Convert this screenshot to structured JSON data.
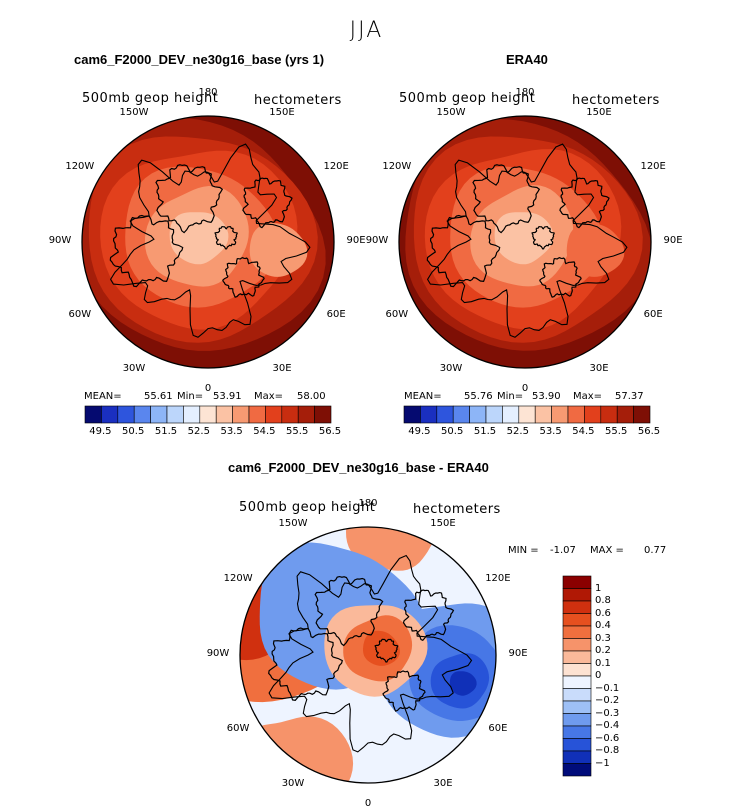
{
  "super_title": "JJA",
  "chart_data": [
    {
      "type": "heatmap",
      "title": "cam6_F2000_DEV_ne30g16_base (yrs 1)",
      "projection": "north polar stereographic",
      "field_label": "500mb geop height",
      "units": "hectometers",
      "lon_labels": [
        "180",
        "150E",
        "120E",
        "90E",
        "60E",
        "30E",
        "0",
        "30W",
        "60W",
        "90W",
        "120W",
        "150W"
      ],
      "stats": {
        "mean_label": "MEAN=",
        "mean": "55.61",
        "min_label": "Min=",
        "min": "53.91",
        "max_label": "Max=",
        "max": "58.00"
      },
      "contour_levels": [
        49.5,
        50,
        50.5,
        51,
        51.5,
        52,
        52.5,
        53,
        53.5,
        54,
        54.5,
        55,
        55.5,
        56,
        56.5
      ],
      "colorbar_labels": [
        "49.5",
        "50.5",
        "51.5",
        "52.5",
        "53.5",
        "54.5",
        "55.5",
        "56.5"
      ],
      "colors": [
        "#050a70",
        "#1a2fc0",
        "#2e55dd",
        "#5a86ee",
        "#8db5f7",
        "#bcd6fb",
        "#e4efff",
        "#fde4d4",
        "#fbc2a4",
        "#f79a72",
        "#f06a42",
        "#e2401c",
        "#c82d10",
        "#a51e0a",
        "#7e0f05"
      ]
    },
    {
      "type": "heatmap",
      "title": "ERA40",
      "projection": "north polar stereographic",
      "field_label": "500mb geop height",
      "units": "hectometers",
      "lon_labels": [
        "180",
        "150E",
        "120E",
        "90E",
        "60E",
        "30E",
        "0",
        "30W",
        "60W",
        "90W",
        "120W",
        "150W"
      ],
      "stats": {
        "mean_label": "MEAN=",
        "mean": "55.76",
        "min_label": "Min=",
        "min": "53.90",
        "max_label": "Max=",
        "max": "57.37"
      },
      "contour_levels": [
        49.5,
        50,
        50.5,
        51,
        51.5,
        52,
        52.5,
        53,
        53.5,
        54,
        54.5,
        55,
        55.5,
        56,
        56.5
      ],
      "colorbar_labels": [
        "49.5",
        "50.5",
        "51.5",
        "52.5",
        "53.5",
        "54.5",
        "55.5",
        "56.5"
      ],
      "colors": [
        "#050a70",
        "#1a2fc0",
        "#2e55dd",
        "#5a86ee",
        "#8db5f7",
        "#bcd6fb",
        "#e4efff",
        "#fde4d4",
        "#fbc2a4",
        "#f79a72",
        "#f06a42",
        "#e2401c",
        "#c82d10",
        "#a51e0a",
        "#7e0f05"
      ]
    },
    {
      "type": "heatmap",
      "title": "cam6_F2000_DEV_ne30g16_base - ERA40",
      "projection": "north polar stereographic",
      "field_label": "500mb geop height",
      "units": "hectometers",
      "lon_labels": [
        "180",
        "150E",
        "120E",
        "90E",
        "60E",
        "30E",
        "0",
        "30W",
        "60W",
        "90W",
        "120W",
        "150W"
      ],
      "stats": {
        "min_label": "MIN =",
        "min": "-1.07",
        "max_label": "MAX =",
        "max": "0.77"
      },
      "contour_levels": [
        -1,
        -0.8,
        -0.6,
        -0.4,
        -0.3,
        -0.2,
        -0.1,
        0,
        0.1,
        0.2,
        0.3,
        0.4,
        0.6,
        0.8,
        1
      ],
      "colorbar_labels": [
        "1",
        "0.8",
        "0.6",
        "0.4",
        "0.3",
        "0.2",
        "0.1",
        "0",
        "−0.1",
        "−0.2",
        "−0.3",
        "−0.4",
        "−0.6",
        "−0.8",
        "−1"
      ],
      "colors": [
        "#8b0000",
        "#b01805",
        "#d0300f",
        "#e6501f",
        "#f06f3e",
        "#f6936a",
        "#fab99a",
        "#fde2d2",
        "#eef4ff",
        "#c9dcfb",
        "#9ec0f6",
        "#6f9bee",
        "#4777e6",
        "#2753d8",
        "#1030b8",
        "#000c7a"
      ]
    }
  ]
}
